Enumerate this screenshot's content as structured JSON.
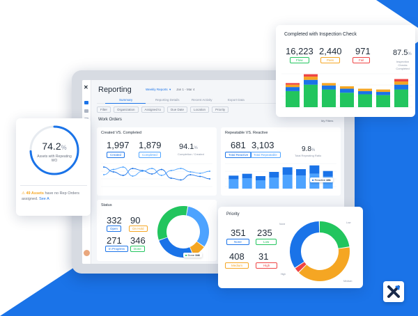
{
  "app": {
    "title": "Reporting",
    "report_selector": "Weekly Reports",
    "date_range": "Jan 1 - Mar 4",
    "tabs": [
      "Summary",
      "Reporting Details",
      "Recent Activity",
      "Export Data"
    ],
    "section_title": "Work Orders",
    "my_filters": "My Filters",
    "filters": [
      "Filter",
      "Organization",
      "Assigned to",
      "Due Date",
      "Location",
      "Priority"
    ]
  },
  "created_vs_completed": {
    "title": "Created VS. Completed",
    "created_value": "1,997",
    "created_label": "Created",
    "completed_value": "1,879",
    "completed_label": "Completed",
    "rate_value": "94.1",
    "rate_unit": "%",
    "rate_label": "Completion / Created"
  },
  "repeatable_vs_reactive": {
    "title": "Repeatable VS. Reactive",
    "reactive_value": "681",
    "reactive_label": "Total Reactive",
    "repeatable_value": "3,103",
    "repeatable_label": "Total Repeatable",
    "ratio_value": "9.8",
    "ratio_unit": "%",
    "ratio_label": "Total Repeating Ratio",
    "tooltip_label": "Reactive",
    "tooltip_value": "481"
  },
  "status": {
    "title": "Status",
    "open_value": "332",
    "open_label": "Open",
    "onhold_value": "90",
    "onhold_label": "On Hold",
    "inprogress_value": "271",
    "inprogress_label": "In Progress",
    "done_value": "346",
    "done_label": "Done",
    "tooltip_label": "Done",
    "tooltip_value": "346"
  },
  "inspection": {
    "title": "Completed with Inspection Check",
    "total_value": "16,223",
    "total_label": "Flow",
    "pass_value": "2,440",
    "pass_label": "Pass",
    "fail_value": "971",
    "fail_label": "Fail",
    "rate_value": "87.5",
    "rate_unit": "%",
    "rate_label": "Inspection Checks Completed"
  },
  "avg": {
    "value": "74.2",
    "unit": "%",
    "label": "Assets with Repeating WO",
    "warning_count": "49 Assets",
    "warning_text": "have no Rep Orders assigned.",
    "link": "See A"
  },
  "priority": {
    "title": "Priority",
    "none_value": "351",
    "none_label": "None",
    "low_value": "235",
    "low_label": "Low",
    "medium_value": "408",
    "medium_label": "Medium",
    "high_value": "31",
    "high_label": "High",
    "donut_labels": [
      "None",
      "Low",
      "High",
      "Medium"
    ]
  },
  "colors": {
    "brand_blue": "#1a73e8",
    "green": "#22c55e",
    "orange": "#f5a623",
    "red": "#ef4444",
    "light_blue": "#4da3ff"
  },
  "chart_data": [
    {
      "type": "line",
      "title": "Created VS. Completed",
      "series": [
        {
          "values": [
            62,
            48,
            38,
            58,
            52,
            42,
            55,
            30,
            25,
            40,
            35,
            28
          ]
        },
        {
          "values": [
            40,
            55,
            62,
            36,
            50,
            58,
            38,
            52,
            58,
            48,
            44,
            50
          ]
        }
      ],
      "ylim": [
        0,
        80
      ]
    },
    {
      "type": "bar",
      "title": "Repeatable VS. Reactive",
      "categories": [
        "1",
        "2",
        "3",
        "4",
        "5",
        "6",
        "7",
        "8"
      ],
      "series": [
        {
          "values": [
            20,
            22,
            18,
            24,
            30,
            28,
            32,
            26
          ]
        },
        {
          "values": [
            8,
            10,
            9,
            12,
            16,
            14,
            18,
            12
          ]
        }
      ],
      "ylim": [
        0,
        60
      ]
    },
    {
      "type": "pie",
      "title": "Status",
      "categories": [
        "Open",
        "On Hold",
        "In Progress",
        "Done"
      ],
      "values": [
        332,
        90,
        271,
        346
      ]
    },
    {
      "type": "bar",
      "title": "Completed with Inspection Check",
      "categories": [
        "1",
        "2",
        "3",
        "4",
        "5",
        "6",
        "7"
      ],
      "series": [
        {
          "name": "Pass",
          "values": [
            20,
            28,
            22,
            18,
            16,
            15,
            22
          ]
        },
        {
          "name": "Flow",
          "values": [
            5,
            6,
            5,
            5,
            4,
            4,
            6
          ]
        },
        {
          "name": "Warn",
          "values": [
            3,
            4,
            3,
            3,
            3,
            3,
            4
          ]
        },
        {
          "name": "Fail",
          "values": [
            2,
            3,
            0,
            0,
            0,
            0,
            3
          ]
        }
      ]
    },
    {
      "type": "pie",
      "title": "Priority",
      "categories": [
        "None",
        "Low",
        "Medium",
        "High"
      ],
      "values": [
        351,
        235,
        408,
        31
      ]
    }
  ]
}
